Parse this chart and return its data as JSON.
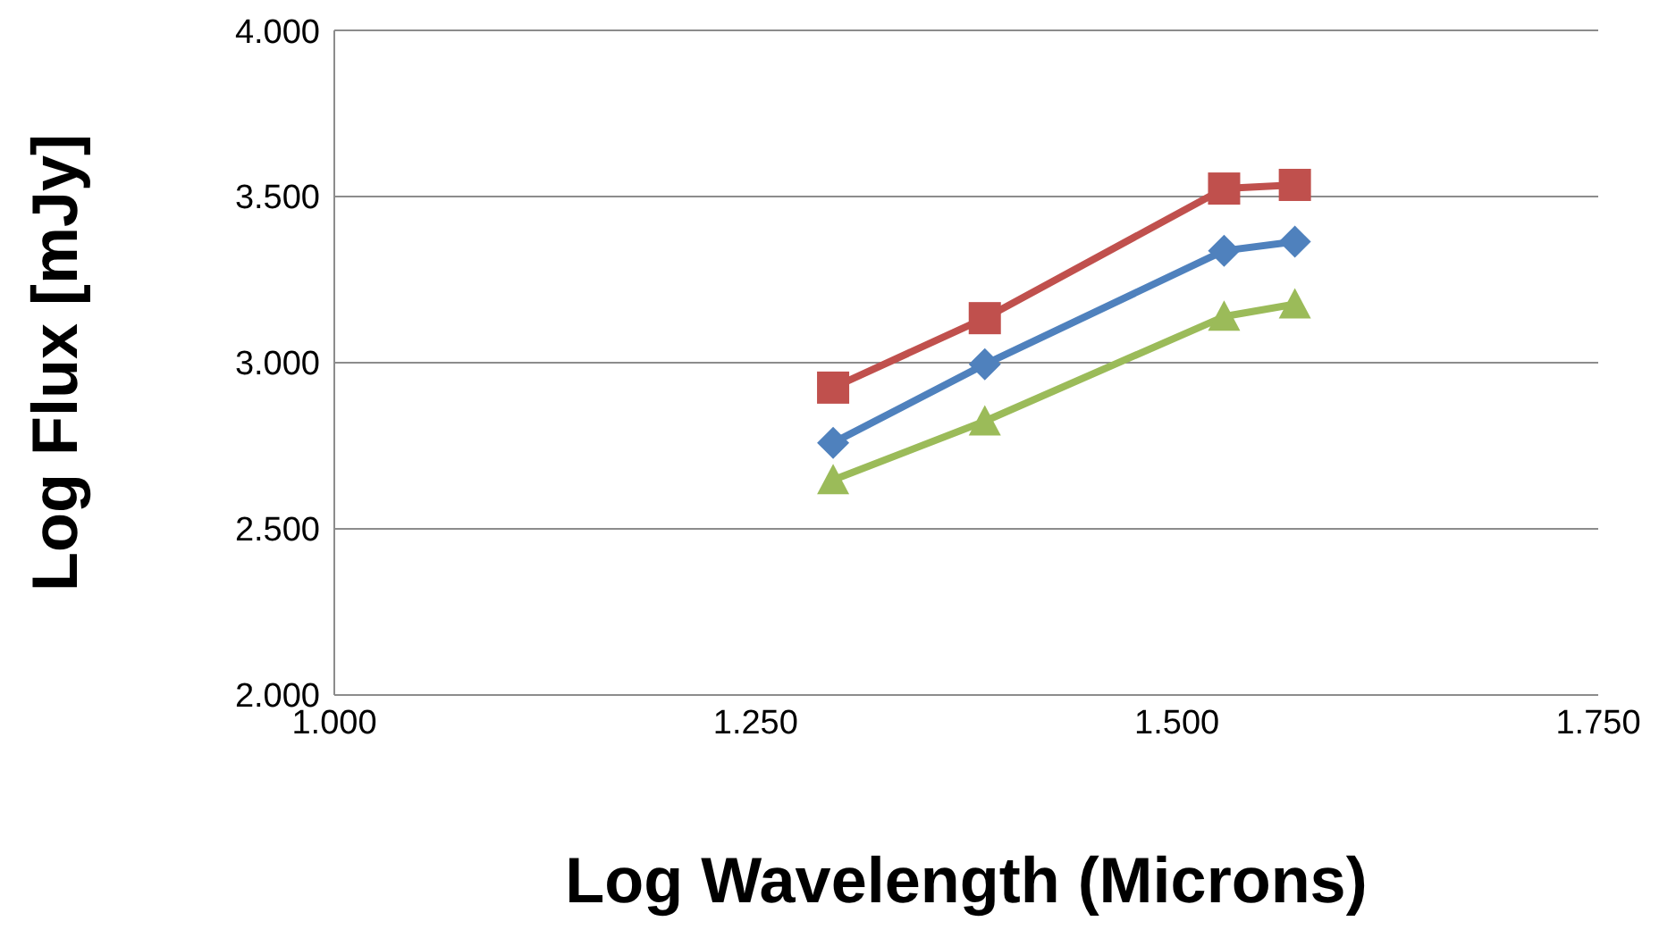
{
  "chart_data": {
    "type": "line",
    "xlabel": "Log Wavelength (Microns)",
    "ylabel": "Log Flux [mJy]",
    "x": [
      1.296,
      1.386,
      1.528,
      1.57
    ],
    "series": [
      {
        "color": "#c0504d",
        "marker": "square",
        "values": [
          2.925,
          3.134,
          3.524,
          3.535
        ]
      },
      {
        "color": "#4f81bd",
        "marker": "diamond",
        "values": [
          2.759,
          2.995,
          3.337,
          3.364
        ]
      },
      {
        "color": "#9bbb59",
        "marker": "triangle",
        "values": [
          2.647,
          2.824,
          3.139,
          3.176
        ]
      }
    ],
    "xlim": [
      1.0,
      1.75
    ],
    "xticks": [
      {
        "value": 1.0,
        "label": "1.000"
      },
      {
        "value": 1.25,
        "label": "1.250"
      },
      {
        "value": 1.5,
        "label": "1.500"
      },
      {
        "value": 1.75,
        "label": "1.750"
      }
    ],
    "ylim": [
      2.0,
      4.0
    ],
    "yticks": [
      {
        "value": 2.0,
        "label": "2.000"
      },
      {
        "value": 2.5,
        "label": "2.500"
      },
      {
        "value": 3.0,
        "label": "3.000"
      },
      {
        "value": 3.5,
        "label": "3.500"
      },
      {
        "value": 4.0,
        "label": "4.000"
      }
    ],
    "grid": "y",
    "legend": false,
    "line_style": "solid"
  }
}
